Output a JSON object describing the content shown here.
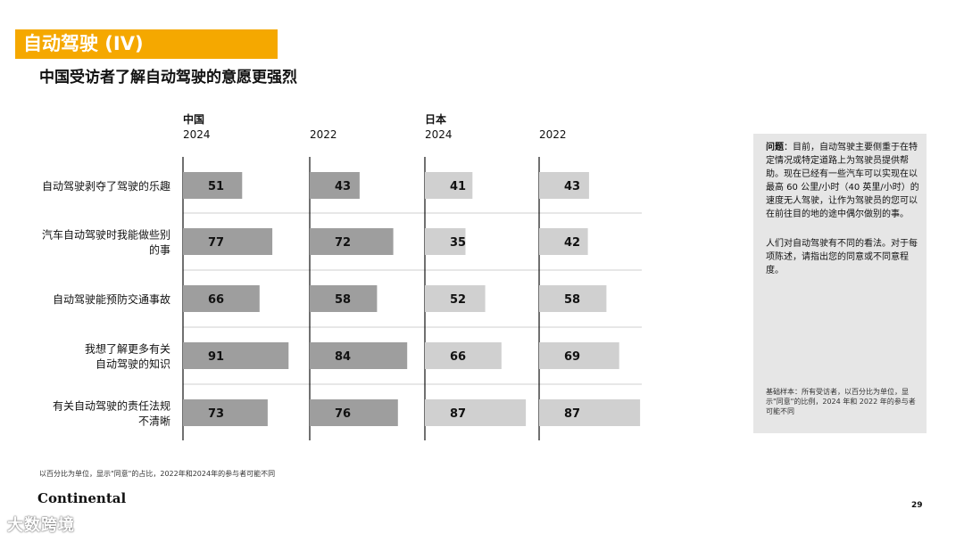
{
  "header": {
    "title": "自动驾驶 (IV)",
    "subtitle": "中国受访者了解自动驾驶的意愿更强烈"
  },
  "colors": {
    "accent": "#f5a800",
    "china_bar": "#9e9e9e",
    "japan_bar": "#d0d0d0"
  },
  "chart_data": {
    "type": "bar",
    "orientation": "horizontal",
    "categories": [
      "自动驾驶剥夺了驾驶的乐趣",
      "汽车自动驾驶时我能做些别的事",
      "自动驾驶能预防交通事故",
      "我想了解更多有关自动驾驶的知识",
      "有关自动驾驶的责任法规不清晰"
    ],
    "category_lines": [
      [
        "自动驾驶剥夺了驾驶的乐趣"
      ],
      [
        "汽车自动驾驶时我能做些别",
        "的事"
      ],
      [
        "自动驾驶能预防交通事故"
      ],
      [
        "我想了解更多有关",
        "自动驾驶的知识"
      ],
      [
        "有关自动驾驶的责任法规",
        "不清晰"
      ]
    ],
    "groups": [
      {
        "name": "中国",
        "year": "2024",
        "values": [
          51,
          77,
          66,
          91,
          73
        ]
      },
      {
        "name": "",
        "year": "2022",
        "values": [
          43,
          72,
          58,
          84,
          76
        ]
      },
      {
        "name": "日本",
        "year": "2024",
        "values": [
          41,
          35,
          52,
          66,
          87
        ]
      },
      {
        "name": "",
        "year": "2022",
        "values": [
          43,
          42,
          58,
          69,
          87
        ]
      }
    ],
    "xlim": [
      0,
      100
    ]
  },
  "sidebar": {
    "question_label": "问题",
    "question_text": "：目前，自动驾驶主要侧重于在特定情况或特定道路上为驾驶员提供帮助。现在已经有一些汽车可以实现在以最高 60 公里/小时（40 英里/小时）的速度无人驾驶，让作为驾驶员的您可以在前往目的地的途中偶尔做别的事。",
    "note": "人们对自动驾驶有不同的看法。对于每项陈述，请指出您的同意或不同意程度。",
    "base": "基础样本：所有受访者，以百分比为单位，显示\"同意\"的比例，2024 年和 2022 年的参与者可能不同"
  },
  "footer": {
    "footnote": "以百分比为单位，显示\"同意\"的占比，2022年和2024年的参与者可能不同",
    "logo": "Continental",
    "page_number": "29",
    "watermark": "大数跨境"
  }
}
